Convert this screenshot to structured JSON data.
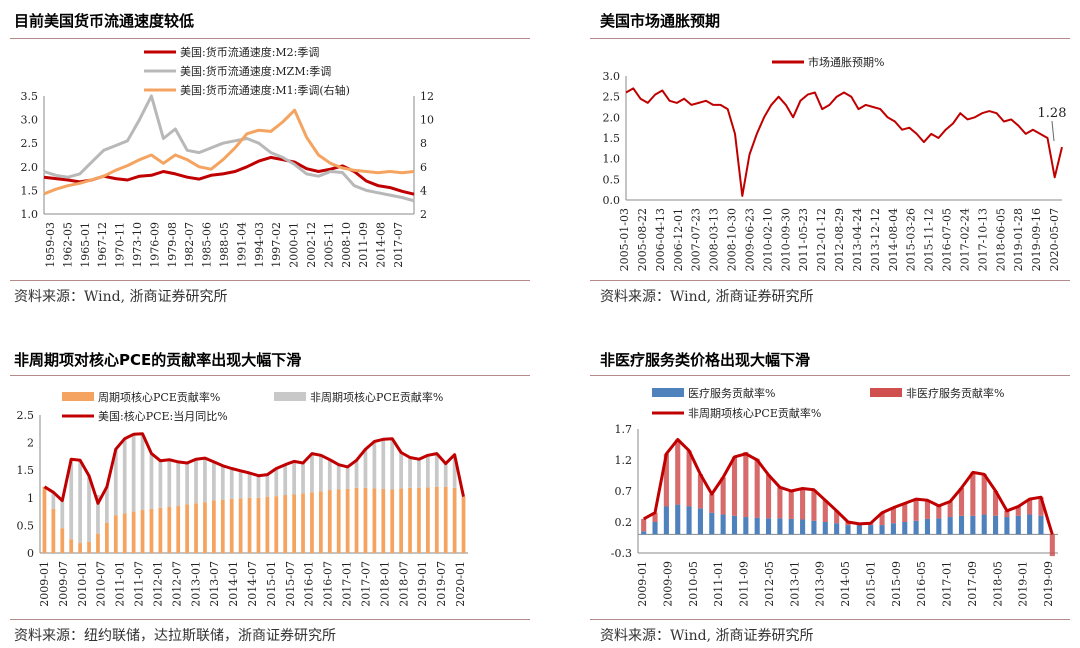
{
  "panels": [
    {
      "title": "目前美国货币流通速度较低",
      "source": "资料来源：Wind, 浙商证券研究所"
    },
    {
      "title": "美国市场通胀预期",
      "source": "资料来源：Wind, 浙商证券研究所"
    },
    {
      "title": "非周期项对核心PCE的贡献率出现大幅下滑",
      "source": "资料来源：纽约联储，达拉斯联储，浙商证券研究所"
    },
    {
      "title": "非医疗服务类价格出现大幅下滑",
      "source": "资料来源：Wind, 浙商证券研究所"
    }
  ],
  "chart_data": [
    {
      "type": "line",
      "title": "目前美国货币流通速度较低",
      "x_labels": [
        "1959-03",
        "1962-05",
        "1965-01",
        "1967-12",
        "1970-11",
        "1973-10",
        "1976-09",
        "1979-08",
        "1982-07",
        "1985-06",
        "1988-05",
        "1991-04",
        "1994-03",
        "1997-02",
        "2000-01",
        "2002-12",
        "2005-11",
        "2008-10",
        "2011-09",
        "2014-08",
        "2017-07"
      ],
      "ylim_left": [
        1.0,
        3.5
      ],
      "yticks_left": [
        "1.0",
        "1.5",
        "2.0",
        "2.5",
        "3.0",
        "3.5"
      ],
      "ylim_right": [
        2,
        12
      ],
      "yticks_right": [
        "2",
        "4",
        "6",
        "8",
        "10",
        "12"
      ],
      "series": [
        {
          "name": "美国:货币流通速度:M2:季调",
          "color": "#c00000",
          "axis": "left",
          "values": [
            1.78,
            1.75,
            1.72,
            1.68,
            1.72,
            1.8,
            1.75,
            1.72,
            1.8,
            1.82,
            1.9,
            1.85,
            1.78,
            1.74,
            1.82,
            1.85,
            1.9,
            2.0,
            2.12,
            2.2,
            2.15,
            2.1,
            1.96,
            1.9,
            1.95,
            2.02,
            1.9,
            1.7,
            1.6,
            1.56,
            1.48,
            1.42
          ]
        },
        {
          "name": "美国:货币流通速度:MZM:季调",
          "color": "#b8b8b8",
          "axis": "left",
          "values": [
            1.9,
            1.82,
            1.78,
            1.85,
            2.1,
            2.35,
            2.45,
            2.55,
            3.0,
            3.5,
            2.6,
            2.8,
            2.35,
            2.3,
            2.4,
            2.5,
            2.55,
            2.6,
            2.5,
            2.3,
            2.2,
            2.05,
            1.85,
            1.8,
            1.9,
            1.88,
            1.6,
            1.5,
            1.45,
            1.4,
            1.35,
            1.28
          ]
        },
        {
          "name": "美国:货币流通速度:M1:季调(右轴)",
          "color": "#f4a460",
          "axis": "right",
          "values": [
            3.7,
            4.1,
            4.4,
            4.6,
            4.9,
            5.2,
            5.7,
            6.1,
            6.6,
            7.0,
            6.3,
            7.0,
            6.6,
            6.0,
            5.8,
            6.6,
            7.6,
            8.8,
            9.1,
            9.0,
            9.8,
            10.8,
            8.5,
            7.0,
            6.3,
            5.9,
            5.7,
            5.6,
            5.5,
            5.6,
            5.5,
            5.6
          ]
        }
      ]
    },
    {
      "type": "line",
      "title": "美国市场通胀预期",
      "x_labels": [
        "2005-01-03",
        "2005-08-22",
        "2006-04-13",
        "2006-12-01",
        "2007-07-23",
        "2008-03-13",
        "2008-10-30",
        "2009-06-23",
        "2010-02-10",
        "2010-09-30",
        "2011-05-23",
        "2012-01-12",
        "2012-08-29",
        "2013-04-24",
        "2013-12-12",
        "2014-08-04",
        "2015-03-26",
        "2015-11-12",
        "2016-07-05",
        "2017-02-24",
        "2017-10-13",
        "2018-06-05",
        "2019-01-28",
        "2019-09-16",
        "2020-05-07"
      ],
      "ylim": [
        0,
        3.0
      ],
      "yticks": [
        "0.0",
        "0.5",
        "1.0",
        "1.5",
        "2.0",
        "2.5",
        "3.0"
      ],
      "series": [
        {
          "name": "市场通胀预期%",
          "color": "#c00000",
          "values": [
            2.6,
            2.7,
            2.45,
            2.35,
            2.55,
            2.65,
            2.4,
            2.35,
            2.45,
            2.3,
            2.35,
            2.4,
            2.3,
            2.3,
            2.2,
            1.6,
            0.1,
            1.1,
            1.6,
            2.0,
            2.3,
            2.5,
            2.3,
            2.0,
            2.4,
            2.55,
            2.6,
            2.2,
            2.3,
            2.5,
            2.6,
            2.5,
            2.2,
            2.3,
            2.25,
            2.2,
            2.0,
            1.9,
            1.7,
            1.75,
            1.6,
            1.4,
            1.6,
            1.5,
            1.7,
            1.85,
            2.1,
            1.95,
            2.0,
            2.1,
            2.15,
            2.1,
            1.9,
            1.95,
            1.8,
            1.6,
            1.7,
            1.6,
            1.5,
            0.55,
            1.28
          ]
        }
      ],
      "annotation": "1.28"
    },
    {
      "type": "bar+line",
      "title": "非周期项对核心PCE的贡献率出现大幅下滑",
      "x_labels": [
        "2009-01",
        "2009-07",
        "2010-01",
        "2010-07",
        "2011-01",
        "2011-07",
        "2012-01",
        "2012-07",
        "2013-01",
        "2013-07",
        "2014-01",
        "2014-07",
        "2015-01",
        "2015-07",
        "2016-01",
        "2016-07",
        "2017-01",
        "2017-07",
        "2018-01",
        "2018-07",
        "2019-01",
        "2019-07",
        "2020-01"
      ],
      "ylim": [
        0,
        2.5
      ],
      "yticks": [
        "0",
        "0.5",
        "1",
        "1.5",
        "2",
        "2.5"
      ],
      "series": [
        {
          "name": "周期项核心PCE贡献率%",
          "color": "#f4a460",
          "kind": "bar",
          "values": [
            1.2,
            0.8,
            0.45,
            0.25,
            0.18,
            0.2,
            0.35,
            0.55,
            0.68,
            0.72,
            0.75,
            0.78,
            0.8,
            0.82,
            0.84,
            0.85,
            0.88,
            0.9,
            0.92,
            0.95,
            0.96,
            0.98,
            0.99,
            1.0,
            1.0,
            1.02,
            1.03,
            1.05,
            1.06,
            1.08,
            1.1,
            1.12,
            1.14,
            1.15,
            1.16,
            1.18,
            1.18,
            1.17,
            1.16,
            1.15,
            1.17,
            1.18,
            1.18,
            1.19,
            1.2,
            1.2,
            1.18,
            1.02
          ]
        },
        {
          "name": "非周期项核心PCE贡献率%",
          "color": "#c8c8c8",
          "kind": "bar",
          "values": [
            0.0,
            0.3,
            0.5,
            1.45,
            1.5,
            1.2,
            0.7,
            0.65,
            1.2,
            1.35,
            1.4,
            1.38,
            1.0,
            0.85,
            0.85,
            0.8,
            0.75,
            0.8,
            0.8,
            0.7,
            0.62,
            0.55,
            0.5,
            0.45,
            0.4,
            0.4,
            0.5,
            0.55,
            0.6,
            0.55,
            0.7,
            0.65,
            0.55,
            0.45,
            0.4,
            0.5,
            0.7,
            0.85,
            0.9,
            0.92,
            0.65,
            0.55,
            0.52,
            0.58,
            0.6,
            0.42,
            0.6,
            0.0
          ]
        },
        {
          "name": "美国:核心PCE:当月同比%",
          "color": "#c00000",
          "kind": "line",
          "values": [
            1.2,
            1.1,
            0.95,
            1.7,
            1.68,
            1.4,
            0.9,
            1.2,
            1.88,
            2.07,
            2.15,
            2.16,
            1.8,
            1.67,
            1.69,
            1.65,
            1.63,
            1.7,
            1.72,
            1.65,
            1.58,
            1.53,
            1.49,
            1.45,
            1.4,
            1.42,
            1.53,
            1.6,
            1.66,
            1.63,
            1.8,
            1.77,
            1.69,
            1.6,
            1.56,
            1.68,
            1.88,
            2.02,
            2.06,
            2.07,
            1.82,
            1.73,
            1.7,
            1.77,
            1.8,
            1.62,
            1.78,
            1.02
          ]
        }
      ]
    },
    {
      "type": "bar+line",
      "title": "非医疗服务类价格出现大幅下滑",
      "x_labels": [
        "2009-01",
        "2009-09",
        "2010-05",
        "2011-01",
        "2011-09",
        "2012-05",
        "2013-01",
        "2013-09",
        "2014-05",
        "2015-01",
        "2015-09",
        "2016-05",
        "2017-01",
        "2017-09",
        "2018-05",
        "2019-01",
        "2019-09"
      ],
      "ylim": [
        -0.3,
        1.7
      ],
      "yticks": [
        "-0.3",
        "0.2",
        "0.7",
        "1.2",
        "1.7"
      ],
      "series": [
        {
          "name": "医疗服务贡献率%",
          "color": "#4f81bd",
          "kind": "bar",
          "values": [
            0.05,
            0.2,
            0.45,
            0.48,
            0.45,
            0.42,
            0.35,
            0.32,
            0.3,
            0.28,
            0.27,
            0.26,
            0.26,
            0.25,
            0.24,
            0.22,
            0.2,
            0.18,
            0.15,
            0.15,
            0.15,
            0.15,
            0.18,
            0.2,
            0.22,
            0.25,
            0.26,
            0.28,
            0.3,
            0.3,
            0.32,
            0.3,
            0.28,
            0.3,
            0.32,
            0.3,
            0.0
          ]
        },
        {
          "name": "非医疗服务贡献率%",
          "color": "#d05050",
          "kind": "bar",
          "values": [
            0.2,
            0.15,
            0.85,
            1.05,
            0.9,
            0.55,
            0.3,
            0.6,
            0.95,
            1.05,
            0.95,
            0.7,
            0.5,
            0.45,
            0.5,
            0.5,
            0.35,
            0.2,
            0.05,
            0.02,
            0.03,
            0.2,
            0.25,
            0.3,
            0.35,
            0.3,
            0.2,
            0.25,
            0.45,
            0.7,
            0.65,
            0.4,
            0.1,
            0.15,
            0.25,
            0.3,
            -0.35
          ]
        },
        {
          "name": "非周期项核心PCE贡献率%",
          "color": "#c00000",
          "kind": "line",
          "values": [
            0.25,
            0.35,
            1.3,
            1.53,
            1.35,
            0.97,
            0.65,
            0.92,
            1.25,
            1.3,
            1.2,
            0.96,
            0.76,
            0.7,
            0.74,
            0.72,
            0.55,
            0.38,
            0.2,
            0.17,
            0.18,
            0.35,
            0.43,
            0.5,
            0.57,
            0.55,
            0.46,
            0.53,
            0.75,
            1.0,
            0.97,
            0.7,
            0.38,
            0.45,
            0.57,
            0.6,
            0.0
          ]
        }
      ]
    }
  ]
}
